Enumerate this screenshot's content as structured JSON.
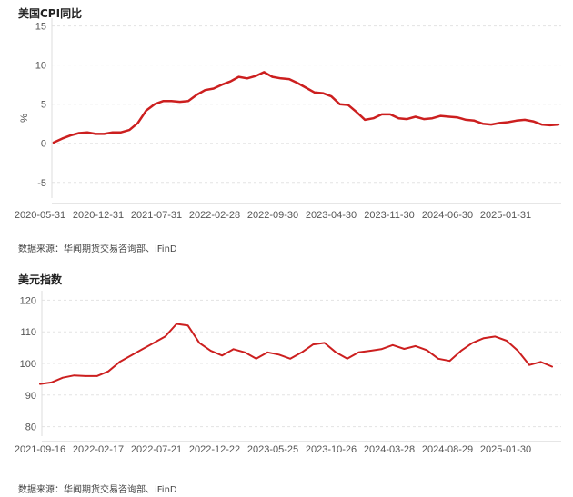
{
  "charts": [
    {
      "title": "美国CPI同比",
      "source": "数据来源：华闻期货交易咨询部、iFinD"
    },
    {
      "title": "美元指数",
      "source": "数据来源：华闻期货交易咨询部、iFinD"
    }
  ],
  "chart_data": [
    {
      "type": "line",
      "title": "美国CPI同比",
      "ylabel": "%",
      "xlabel": "",
      "ylim": [
        -7,
        16
      ],
      "yticks": [
        15,
        10,
        5,
        0,
        -5
      ],
      "xtick_labels": [
        "2020-05-31",
        "2020-12-31",
        "2021-07-31",
        "2022-02-28",
        "2022-09-30",
        "2023-04-30",
        "2023-11-30",
        "2024-06-30",
        "2025-01-31"
      ],
      "grid": "horizontal dashed",
      "line_color": "#cc1f1f",
      "x": [
        "2020-05",
        "2020-06",
        "2020-07",
        "2020-08",
        "2020-09",
        "2020-10",
        "2020-11",
        "2020-12",
        "2021-01",
        "2021-02",
        "2021-03",
        "2021-04",
        "2021-05",
        "2021-06",
        "2021-07",
        "2021-08",
        "2021-09",
        "2021-10",
        "2021-11",
        "2021-12",
        "2022-01",
        "2022-02",
        "2022-03",
        "2022-04",
        "2022-05",
        "2022-06",
        "2022-07",
        "2022-08",
        "2022-09",
        "2022-10",
        "2022-11",
        "2022-12",
        "2023-01",
        "2023-02",
        "2023-03",
        "2023-04",
        "2023-05",
        "2023-06",
        "2023-07",
        "2023-08",
        "2023-09",
        "2023-10",
        "2023-11",
        "2023-12",
        "2024-01",
        "2024-02",
        "2024-03",
        "2024-04",
        "2024-05",
        "2024-06",
        "2024-07",
        "2024-08",
        "2024-09",
        "2024-10",
        "2024-11",
        "2024-12",
        "2025-01",
        "2025-02",
        "2025-03",
        "2025-04",
        "2025-05"
      ],
      "values": [
        0.1,
        0.6,
        1.0,
        1.3,
        1.4,
        1.2,
        1.2,
        1.4,
        1.4,
        1.7,
        2.6,
        4.2,
        5.0,
        5.4,
        5.4,
        5.3,
        5.4,
        6.2,
        6.8,
        7.0,
        7.5,
        7.9,
        8.5,
        8.3,
        8.6,
        9.1,
        8.5,
        8.3,
        8.2,
        7.7,
        7.1,
        6.5,
        6.4,
        6.0,
        5.0,
        4.9,
        4.0,
        3.0,
        3.2,
        3.7,
        3.7,
        3.2,
        3.1,
        3.4,
        3.1,
        3.2,
        3.5,
        3.4,
        3.3,
        3.0,
        2.9,
        2.5,
        2.4,
        2.6,
        2.7,
        2.9,
        3.0,
        2.8,
        2.4,
        2.3,
        2.4
      ]
    },
    {
      "type": "line",
      "title": "美元指数",
      "ylabel": "",
      "xlabel": "",
      "ylim": [
        77,
        123
      ],
      "yticks": [
        120,
        110,
        100,
        90,
        80
      ],
      "xtick_labels": [
        "2021-09-16",
        "2022-02-17",
        "2022-07-21",
        "2022-12-22",
        "2023-05-25",
        "2023-10-26",
        "2024-03-28",
        "2024-08-29",
        "2025-01-30"
      ],
      "grid": "horizontal dashed",
      "line_color": "#cc1f1f",
      "x": [
        "2021-09",
        "2021-10",
        "2021-11",
        "2021-12",
        "2022-01",
        "2022-02",
        "2022-03",
        "2022-04",
        "2022-05",
        "2022-06",
        "2022-07",
        "2022-08",
        "2022-09",
        "2022-10",
        "2022-11",
        "2022-12",
        "2023-01",
        "2023-02",
        "2023-03",
        "2023-04",
        "2023-05",
        "2023-06",
        "2023-07",
        "2023-08",
        "2023-09",
        "2023-10",
        "2023-11",
        "2023-12",
        "2024-01",
        "2024-02",
        "2024-03",
        "2024-04",
        "2024-05",
        "2024-06",
        "2024-07",
        "2024-08",
        "2024-09",
        "2024-10",
        "2024-11",
        "2024-12",
        "2025-01",
        "2025-02",
        "2025-03",
        "2025-04",
        "2025-05",
        "2025-06"
      ],
      "values": [
        93.5,
        94.0,
        95.5,
        96.2,
        96.0,
        96.0,
        97.5,
        100.5,
        102.5,
        104.5,
        106.5,
        108.5,
        112.5,
        112.0,
        106.5,
        104.0,
        102.5,
        104.5,
        103.5,
        101.5,
        103.5,
        102.8,
        101.5,
        103.5,
        106.0,
        106.5,
        103.5,
        101.5,
        103.5,
        104.0,
        104.5,
        105.8,
        104.6,
        105.5,
        104.2,
        101.5,
        100.8,
        104.0,
        106.5,
        108.0,
        108.5,
        107.2,
        104.0,
        99.5,
        100.5,
        99.0
      ]
    }
  ]
}
